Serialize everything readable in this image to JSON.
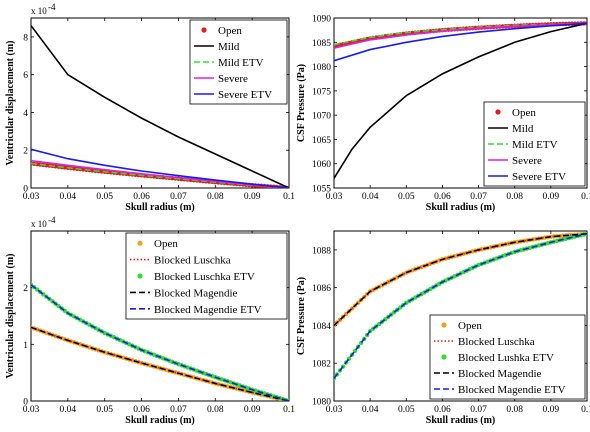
{
  "chart_data": [
    {
      "type": "line",
      "xlabel": "Skull radius (m)",
      "ylabel": "Ventricular displacement (m)",
      "exponent_label": "x 10",
      "exponent_power": "-4",
      "xlim": [
        0.03,
        0.1
      ],
      "ylim": [
        0,
        9
      ],
      "xticks": [
        0.03,
        0.04,
        0.05,
        0.06,
        0.07,
        0.08,
        0.09,
        0.1
      ],
      "xtick_labels": [
        "0.03",
        "0.04",
        "0.05",
        "0.06",
        "0.07",
        "0.08",
        "0.09",
        "0.1"
      ],
      "yticks": [
        0,
        2,
        4,
        6,
        8
      ],
      "ytick_labels": [
        "0",
        "2",
        "4",
        "6",
        "8"
      ],
      "legend_position": "top-right",
      "series": [
        {
          "name": "Open",
          "color": "#e41a1c",
          "style": "dots",
          "x": [
            0.03,
            0.04,
            0.05,
            0.06,
            0.07,
            0.08,
            0.09,
            0.1
          ],
          "y": [
            1.3,
            1.07,
            0.86,
            0.67,
            0.49,
            0.31,
            0.15,
            0
          ]
        },
        {
          "name": "Mild",
          "color": "#000000",
          "style": "solid",
          "x": [
            0.03,
            0.04,
            0.05,
            0.06,
            0.07,
            0.08,
            0.09,
            0.1
          ],
          "y": [
            8.6,
            6.0,
            4.8,
            3.7,
            2.7,
            1.8,
            0.9,
            0
          ]
        },
        {
          "name": "Mild ETV",
          "color": "#33dd33",
          "style": "dashed",
          "x": [
            0.03,
            0.04,
            0.05,
            0.06,
            0.07,
            0.08,
            0.09,
            0.1
          ],
          "y": [
            1.3,
            1.07,
            0.86,
            0.67,
            0.49,
            0.31,
            0.15,
            0
          ]
        },
        {
          "name": "Severe",
          "color": "#e020e0",
          "style": "solid",
          "x": [
            0.03,
            0.04,
            0.05,
            0.06,
            0.07,
            0.08,
            0.09,
            0.1
          ],
          "y": [
            1.45,
            1.2,
            0.97,
            0.75,
            0.55,
            0.36,
            0.17,
            0
          ]
        },
        {
          "name": "Severe ETV",
          "color": "#1a1aee",
          "style": "solid",
          "x": [
            0.03,
            0.04,
            0.05,
            0.06,
            0.07,
            0.08,
            0.09,
            0.1
          ],
          "y": [
            2.05,
            1.55,
            1.2,
            0.9,
            0.65,
            0.42,
            0.2,
            0
          ]
        }
      ]
    },
    {
      "type": "line",
      "xlabel": "Skull radius (m)",
      "ylabel": "CSF Pressure (Pa)",
      "xlim": [
        0.03,
        0.1
      ],
      "ylim": [
        1055,
        1090
      ],
      "xticks": [
        0.03,
        0.04,
        0.05,
        0.06,
        0.07,
        0.08,
        0.09,
        0.1
      ],
      "xtick_labels": [
        "0.03",
        "0.04",
        "0.05",
        "0.06",
        "0.07",
        "0.08",
        "0.09",
        "0.1"
      ],
      "yticks": [
        1055,
        1060,
        1065,
        1070,
        1075,
        1080,
        1085,
        1090
      ],
      "ytick_labels": [
        "1055",
        "1060",
        "1065",
        "1070",
        "1075",
        "1080",
        "1085",
        "1090"
      ],
      "legend_position": "bottom-right",
      "series": [
        {
          "name": "Open",
          "color": "#e41a1c",
          "style": "dots",
          "x": [
            0.03,
            0.04,
            0.05,
            0.06,
            0.07,
            0.08,
            0.09,
            0.1
          ],
          "y": [
            1084.2,
            1085.8,
            1086.8,
            1087.5,
            1088.0,
            1088.4,
            1088.7,
            1088.9
          ]
        },
        {
          "name": "Mild",
          "color": "#000000",
          "style": "solid",
          "x": [
            0.03,
            0.035,
            0.04,
            0.05,
            0.06,
            0.07,
            0.08,
            0.09,
            0.1
          ],
          "y": [
            1057,
            1063,
            1067.5,
            1074,
            1078.5,
            1082,
            1085,
            1087.2,
            1088.9
          ]
        },
        {
          "name": "Mild ETV",
          "color": "#33dd33",
          "style": "dashed",
          "x": [
            0.03,
            0.04,
            0.05,
            0.06,
            0.07,
            0.08,
            0.09,
            0.1
          ],
          "y": [
            1084.5,
            1086.0,
            1087.0,
            1087.6,
            1088.1,
            1088.5,
            1088.7,
            1088.9
          ]
        },
        {
          "name": "Severe",
          "color": "#e020e0",
          "style": "solid",
          "x": [
            0.03,
            0.04,
            0.05,
            0.06,
            0.07,
            0.08,
            0.09,
            0.1
          ],
          "y": [
            1083.8,
            1085.5,
            1086.5,
            1087.3,
            1087.9,
            1088.3,
            1088.6,
            1088.9
          ]
        },
        {
          "name": "Severe ETV",
          "color": "#1a1aee",
          "style": "solid",
          "x": [
            0.03,
            0.04,
            0.05,
            0.06,
            0.07,
            0.08,
            0.09,
            0.1
          ],
          "y": [
            1081.2,
            1083.5,
            1085.0,
            1086.2,
            1087.1,
            1087.8,
            1088.4,
            1088.9
          ]
        }
      ]
    },
    {
      "type": "line",
      "xlabel": "Skull radius (m)",
      "ylabel": "Ventricular displacement (m)",
      "exponent_label": "x 10",
      "exponent_power": "-4",
      "xlim": [
        0.03,
        0.1
      ],
      "ylim": [
        0,
        3
      ],
      "xticks": [
        0.03,
        0.04,
        0.05,
        0.06,
        0.07,
        0.08,
        0.09,
        0.1
      ],
      "xtick_labels": [
        "0.03",
        "0.04",
        "0.05",
        "0.06",
        "0.07",
        "0.08",
        "0.09",
        "0.1"
      ],
      "yticks": [
        0,
        1,
        2
      ],
      "ytick_labels": [
        "0",
        "1",
        "2"
      ],
      "legend_position": "top-right",
      "series": [
        {
          "name": "Open",
          "color": "#f5a020",
          "style": "dots",
          "x": [
            0.03,
            0.04,
            0.05,
            0.06,
            0.07,
            0.08,
            0.09,
            0.1
          ],
          "y": [
            1.3,
            1.07,
            0.86,
            0.67,
            0.49,
            0.31,
            0.15,
            0
          ]
        },
        {
          "name": "Blocked Luschka",
          "color": "#e41a1c",
          "style": "dotted",
          "x": [
            0.03,
            0.04,
            0.05,
            0.06,
            0.07,
            0.08,
            0.09,
            0.1
          ],
          "y": [
            1.3,
            1.07,
            0.86,
            0.67,
            0.49,
            0.31,
            0.15,
            0
          ]
        },
        {
          "name": "Blocked Luschka ETV",
          "color": "#33dd33",
          "style": "dots",
          "x": [
            0.03,
            0.04,
            0.05,
            0.06,
            0.07,
            0.08,
            0.09,
            0.1
          ],
          "y": [
            2.05,
            1.55,
            1.2,
            0.9,
            0.65,
            0.42,
            0.2,
            0
          ]
        },
        {
          "name": "Blocked Magendie",
          "color": "#000000",
          "style": "dashed",
          "x": [
            0.03,
            0.04,
            0.05,
            0.06,
            0.07,
            0.08,
            0.09,
            0.1
          ],
          "y": [
            1.3,
            1.07,
            0.86,
            0.67,
            0.49,
            0.31,
            0.15,
            0
          ]
        },
        {
          "name": "Blocked Magendie ETV",
          "color": "#1a1aee",
          "style": "dashed",
          "x": [
            0.03,
            0.04,
            0.05,
            0.06,
            0.07,
            0.08,
            0.09,
            0.1
          ],
          "y": [
            2.05,
            1.55,
            1.2,
            0.9,
            0.65,
            0.42,
            0.2,
            0
          ]
        }
      ]
    },
    {
      "type": "line",
      "xlabel": "Skull radius (m)",
      "ylabel": "CSF Pressure (Pa)",
      "xlim": [
        0.03,
        0.1
      ],
      "ylim": [
        1080,
        1089
      ],
      "xticks": [
        0.03,
        0.04,
        0.05,
        0.06,
        0.07,
        0.08,
        0.09,
        0.1
      ],
      "xtick_labels": [
        "0.03",
        "0.04",
        "0.05",
        "0.06",
        "0.07",
        "0.08",
        "0.09",
        "0.1"
      ],
      "yticks": [
        1080,
        1082,
        1084,
        1086,
        1088
      ],
      "ytick_labels": [
        "1080",
        "1082",
        "1084",
        "1086",
        "1088"
      ],
      "legend_position": "bottom-right",
      "series": [
        {
          "name": "Open",
          "color": "#f5a020",
          "style": "dots",
          "x": [
            0.03,
            0.04,
            0.05,
            0.06,
            0.07,
            0.08,
            0.09,
            0.1
          ],
          "y": [
            1084.0,
            1085.8,
            1086.8,
            1087.5,
            1088.0,
            1088.4,
            1088.7,
            1088.85
          ]
        },
        {
          "name": "Blocked Luschka",
          "color": "#e41a1c",
          "style": "dotted",
          "x": [
            0.03,
            0.04,
            0.05,
            0.06,
            0.07,
            0.08,
            0.09,
            0.1
          ],
          "y": [
            1084.0,
            1085.8,
            1086.8,
            1087.5,
            1088.0,
            1088.4,
            1088.7,
            1088.85
          ]
        },
        {
          "name": "Blocked Lushka ETV",
          "color": "#33dd33",
          "style": "dots",
          "x": [
            0.03,
            0.04,
            0.05,
            0.06,
            0.07,
            0.08,
            0.09,
            0.1
          ],
          "y": [
            1081.2,
            1083.7,
            1085.2,
            1086.3,
            1087.2,
            1087.9,
            1088.4,
            1088.85
          ]
        },
        {
          "name": "Blocked Magendie",
          "color": "#000000",
          "style": "dashed",
          "x": [
            0.03,
            0.04,
            0.05,
            0.06,
            0.07,
            0.08,
            0.09,
            0.1
          ],
          "y": [
            1084.0,
            1085.8,
            1086.8,
            1087.5,
            1088.0,
            1088.4,
            1088.7,
            1088.85
          ]
        },
        {
          "name": "Blocked Magendie ETV",
          "color": "#1a1aee",
          "style": "dashed",
          "x": [
            0.03,
            0.04,
            0.05,
            0.06,
            0.07,
            0.08,
            0.09,
            0.1
          ],
          "y": [
            1081.2,
            1083.7,
            1085.2,
            1086.3,
            1087.2,
            1087.9,
            1088.4,
            1088.85
          ]
        }
      ]
    }
  ]
}
